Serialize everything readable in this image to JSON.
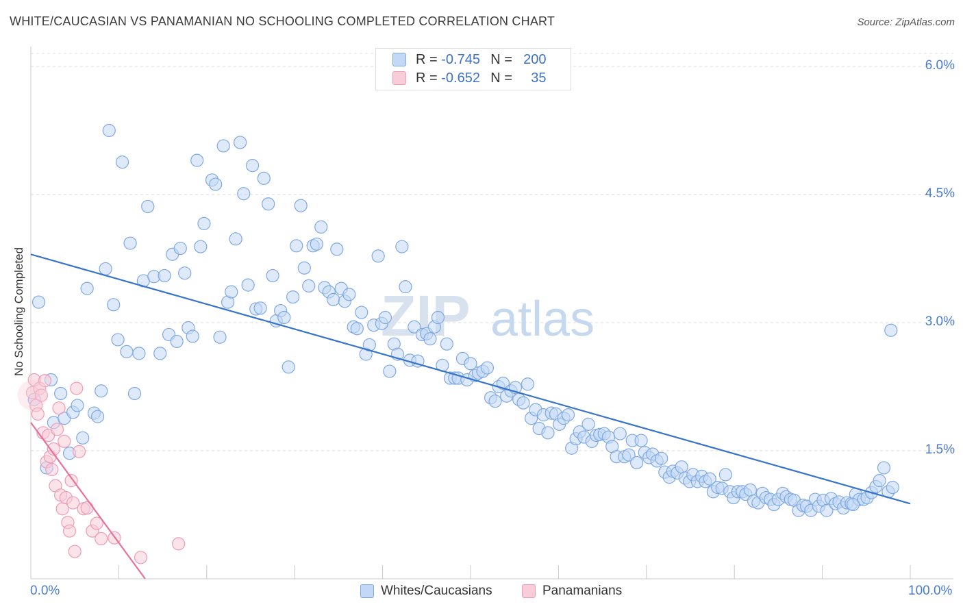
{
  "title": "WHITE/CAUCASIAN VS PANAMANIAN NO SCHOOLING COMPLETED CORRELATION CHART",
  "source": "Source: ZipAtlas.com",
  "watermark": {
    "zip": "ZIP",
    "atlas": "atlas"
  },
  "legend": {
    "r_label": "R =",
    "n_label": "N =",
    "series": [
      {
        "r": "-0.745",
        "n": "200"
      },
      {
        "r": "-0.652",
        "n": "35"
      }
    ]
  },
  "colors": {
    "blue": "#7fa8e3",
    "blue_fill": "#c3d8f6",
    "blue_line": "#3874cb",
    "pink": "#f09ab5",
    "pink_fill": "#f8ccd8",
    "pink_line": "#e8709a",
    "tick_text": "#4a7cc9"
  },
  "chart_data": {
    "type": "scatter",
    "title": "WHITE/CAUCASIAN VS PANAMANIAN NO SCHOOLING COMPLETED CORRELATION CHART",
    "xlabel": "",
    "ylabel": "No Schooling Completed",
    "xlim": [
      0,
      100
    ],
    "ylim": [
      0,
      6.2
    ],
    "x_tick_labels": [
      "0.0%",
      "100.0%"
    ],
    "y_ticks": [
      1.5,
      3.0,
      4.5,
      6.0
    ],
    "y_tick_labels": [
      "1.5%",
      "3.0%",
      "4.5%",
      "6.0%"
    ],
    "grid": "horizontal dashed",
    "legend_position": "top-center",
    "series": [
      {
        "name": "Whites/Caucasians",
        "r": -0.745,
        "n": 200,
        "trend": {
          "x": [
            0,
            100
          ],
          "y": [
            3.8,
            0.88
          ]
        },
        "points": [
          [
            0.4,
            2.1
          ],
          [
            0.9,
            3.24
          ],
          [
            2.3,
            2.33
          ],
          [
            2.6,
            1.83
          ],
          [
            1.8,
            1.3
          ],
          [
            3.4,
            2.17
          ],
          [
            3.8,
            1.88
          ],
          [
            4.4,
            1.47
          ],
          [
            4.8,
            1.95
          ],
          [
            5.3,
            2.03
          ],
          [
            5.9,
            1.65
          ],
          [
            6.4,
            3.4
          ],
          [
            7.2,
            1.94
          ],
          [
            7.6,
            1.9
          ],
          [
            8.0,
            2.2
          ],
          [
            8.5,
            3.63
          ],
          [
            8.9,
            5.25
          ],
          [
            9.4,
            3.21
          ],
          [
            9.9,
            2.8
          ],
          [
            10.4,
            4.88
          ],
          [
            10.9,
            2.66
          ],
          [
            11.3,
            3.93
          ],
          [
            11.8,
            2.17
          ],
          [
            12.3,
            2.64
          ],
          [
            12.8,
            3.49
          ],
          [
            13.3,
            4.36
          ],
          [
            14.0,
            3.54
          ],
          [
            14.7,
            2.64
          ],
          [
            15.2,
            3.55
          ],
          [
            15.7,
            2.86
          ],
          [
            16.1,
            3.8
          ],
          [
            16.6,
            2.78
          ],
          [
            17.0,
            3.87
          ],
          [
            17.5,
            3.58
          ],
          [
            17.9,
            2.94
          ],
          [
            18.4,
            2.84
          ],
          [
            18.9,
            4.9
          ],
          [
            19.3,
            3.89
          ],
          [
            19.7,
            4.16
          ],
          [
            20.6,
            4.67
          ],
          [
            21.0,
            4.62
          ],
          [
            21.5,
            2.83
          ],
          [
            21.9,
            5.07
          ],
          [
            22.4,
            3.24
          ],
          [
            22.8,
            3.36
          ],
          [
            23.3,
            3.98
          ],
          [
            23.8,
            5.11
          ],
          [
            24.2,
            4.51
          ],
          [
            24.7,
            3.44
          ],
          [
            25.2,
            4.84
          ],
          [
            25.6,
            3.16
          ],
          [
            26.1,
            3.17
          ],
          [
            26.5,
            4.69
          ],
          [
            27.0,
            4.39
          ],
          [
            27.5,
            3.55
          ],
          [
            27.9,
            3.02
          ],
          [
            28.4,
            3.14
          ],
          [
            28.8,
            3.06
          ],
          [
            29.3,
            2.48
          ],
          [
            29.8,
            3.3
          ],
          [
            30.2,
            3.9
          ],
          [
            30.7,
            4.37
          ],
          [
            31.1,
            3.64
          ],
          [
            31.6,
            3.43
          ],
          [
            32.1,
            3.9
          ],
          [
            32.5,
            3.92
          ],
          [
            33.0,
            4.12
          ],
          [
            33.4,
            3.41
          ],
          [
            33.9,
            3.36
          ],
          [
            34.4,
            3.27
          ],
          [
            34.8,
            3.86
          ],
          [
            35.3,
            3.4
          ],
          [
            35.7,
            3.25
          ],
          [
            36.2,
            3.33
          ],
          [
            36.7,
            2.95
          ],
          [
            37.1,
            2.93
          ],
          [
            37.6,
            3.12
          ],
          [
            38.1,
            2.63
          ],
          [
            38.5,
            2.74
          ],
          [
            39.0,
            2.97
          ],
          [
            39.5,
            3.78
          ],
          [
            39.9,
            2.99
          ],
          [
            40.3,
            3.06
          ],
          [
            40.8,
            2.43
          ],
          [
            41.3,
            2.75
          ],
          [
            41.7,
            2.63
          ],
          [
            42.2,
            3.89
          ],
          [
            42.6,
            3.42
          ],
          [
            43.1,
            2.56
          ],
          [
            43.6,
            2.95
          ],
          [
            44.0,
            2.55
          ],
          [
            44.5,
            2.86
          ],
          [
            45.0,
            2.87
          ],
          [
            45.4,
            2.81
          ],
          [
            45.9,
            2.95
          ],
          [
            46.3,
            3.06
          ],
          [
            46.8,
            2.5
          ],
          [
            47.3,
            2.75
          ],
          [
            47.7,
            2.35
          ],
          [
            48.2,
            2.35
          ],
          [
            48.6,
            2.35
          ],
          [
            49.1,
            2.58
          ],
          [
            49.6,
            2.33
          ],
          [
            50.0,
            2.52
          ],
          [
            50.5,
            2.38
          ],
          [
            50.9,
            2.41
          ],
          [
            51.4,
            2.43
          ],
          [
            51.9,
            2.47
          ],
          [
            52.3,
            2.12
          ],
          [
            52.8,
            2.08
          ],
          [
            53.2,
            2.25
          ],
          [
            53.7,
            2.29
          ],
          [
            54.1,
            2.14
          ],
          [
            54.6,
            2.2
          ],
          [
            55.1,
            2.24
          ],
          [
            55.5,
            2.1
          ],
          [
            56.0,
            2.06
          ],
          [
            56.5,
            2.28
          ],
          [
            56.9,
            1.88
          ],
          [
            57.4,
            1.98
          ],
          [
            57.8,
            1.76
          ],
          [
            58.3,
            1.92
          ],
          [
            58.8,
            1.71
          ],
          [
            59.2,
            1.94
          ],
          [
            59.7,
            1.93
          ],
          [
            60.1,
            1.81
          ],
          [
            60.6,
            1.88
          ],
          [
            61.1,
            1.92
          ],
          [
            61.5,
            1.53
          ],
          [
            62.0,
            1.64
          ],
          [
            62.4,
            1.72
          ],
          [
            62.9,
            1.66
          ],
          [
            63.4,
            1.81
          ],
          [
            63.8,
            1.61
          ],
          [
            64.3,
            1.68
          ],
          [
            64.7,
            1.69
          ],
          [
            65.2,
            1.7
          ],
          [
            65.7,
            1.66
          ],
          [
            66.1,
            1.55
          ],
          [
            66.6,
            1.43
          ],
          [
            67.0,
            1.7
          ],
          [
            67.5,
            1.43
          ],
          [
            68.0,
            1.45
          ],
          [
            68.4,
            1.62
          ],
          [
            68.9,
            1.36
          ],
          [
            69.4,
            1.62
          ],
          [
            69.8,
            1.48
          ],
          [
            70.3,
            1.42
          ],
          [
            70.7,
            1.46
          ],
          [
            71.2,
            1.38
          ],
          [
            71.7,
            1.41
          ],
          [
            72.1,
            1.25
          ],
          [
            72.6,
            1.19
          ],
          [
            73.0,
            1.26
          ],
          [
            73.5,
            1.24
          ],
          [
            74.0,
            1.31
          ],
          [
            74.4,
            1.18
          ],
          [
            74.9,
            1.14
          ],
          [
            75.3,
            1.22
          ],
          [
            75.8,
            1.14
          ],
          [
            76.3,
            1.2
          ],
          [
            76.7,
            1.14
          ],
          [
            77.2,
            1.17
          ],
          [
            77.6,
            1.02
          ],
          [
            78.1,
            1.07
          ],
          [
            78.6,
            1.06
          ],
          [
            79.0,
            1.22
          ],
          [
            79.5,
            1.02
          ],
          [
            79.9,
            0.95
          ],
          [
            80.4,
            1.02
          ],
          [
            80.9,
            1.02
          ],
          [
            81.3,
            0.99
          ],
          [
            81.8,
            1.04
          ],
          [
            82.2,
            0.91
          ],
          [
            82.7,
            0.89
          ],
          [
            83.2,
            1.0
          ],
          [
            83.6,
            0.95
          ],
          [
            84.1,
            0.93
          ],
          [
            84.5,
            0.87
          ],
          [
            85.0,
            0.93
          ],
          [
            85.5,
            1.0
          ],
          [
            85.9,
            0.96
          ],
          [
            86.4,
            0.93
          ],
          [
            86.8,
            0.92
          ],
          [
            87.3,
            0.8
          ],
          [
            87.8,
            0.86
          ],
          [
            88.2,
            0.85
          ],
          [
            88.7,
            0.8
          ],
          [
            89.2,
            0.93
          ],
          [
            89.6,
            0.85
          ],
          [
            90.1,
            0.92
          ],
          [
            90.5,
            0.8
          ],
          [
            91.0,
            0.94
          ],
          [
            91.5,
            0.88
          ],
          [
            91.9,
            0.9
          ],
          [
            92.4,
            0.83
          ],
          [
            92.8,
            0.89
          ],
          [
            93.3,
            0.88
          ],
          [
            93.8,
            0.99
          ],
          [
            94.2,
            0.93
          ],
          [
            94.7,
            0.93
          ],
          [
            95.1,
            0.95
          ],
          [
            95.6,
            1.01
          ],
          [
            96.1,
            1.08
          ],
          [
            96.5,
            1.15
          ],
          [
            97.0,
            1.3
          ],
          [
            97.8,
            2.91
          ],
          [
            97.5,
            1.02
          ],
          [
            98.0,
            1.07
          ],
          [
            93.5,
            0.87
          ]
        ]
      },
      {
        "name": "Panamanians",
        "r": -0.652,
        "n": 35,
        "trend": {
          "x": [
            0,
            13
          ],
          "y": [
            1.83,
            0.0
          ]
        },
        "points": [
          [
            0.2,
            2.18
          ],
          [
            0.4,
            2.33
          ],
          [
            0.6,
            2.03
          ],
          [
            0.8,
            1.93
          ],
          [
            1.0,
            2.23
          ],
          [
            1.2,
            2.15
          ],
          [
            1.4,
            1.71
          ],
          [
            1.6,
            2.32
          ],
          [
            1.8,
            1.37
          ],
          [
            2.0,
            1.68
          ],
          [
            2.2,
            1.43
          ],
          [
            2.4,
            1.28
          ],
          [
            2.6,
            1.52
          ],
          [
            2.8,
            1.09
          ],
          [
            3.0,
            1.75
          ],
          [
            3.2,
            2.0
          ],
          [
            3.4,
            0.98
          ],
          [
            3.6,
            0.82
          ],
          [
            3.8,
            1.61
          ],
          [
            4.0,
            0.95
          ],
          [
            4.2,
            0.66
          ],
          [
            4.4,
            0.56
          ],
          [
            4.6,
            1.15
          ],
          [
            4.8,
            0.89
          ],
          [
            5.0,
            0.32
          ],
          [
            5.2,
            2.23
          ],
          [
            5.5,
            1.49
          ],
          [
            6.0,
            0.82
          ],
          [
            6.4,
            0.83
          ],
          [
            7.0,
            0.56
          ],
          [
            7.5,
            0.65
          ],
          [
            8.0,
            0.47
          ],
          [
            9.5,
            0.48
          ],
          [
            12.5,
            0.25
          ],
          [
            16.8,
            0.41
          ]
        ]
      }
    ]
  }
}
